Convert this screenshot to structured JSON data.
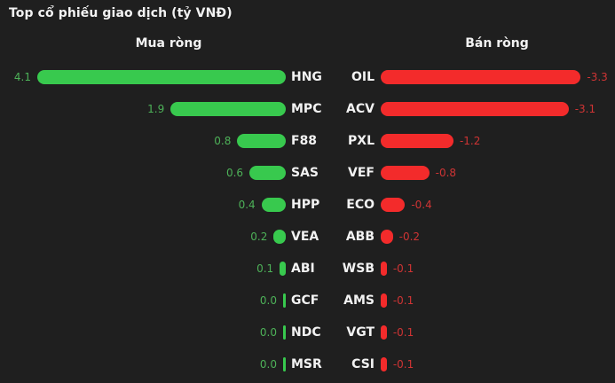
{
  "colors": {
    "background": "#1f1f1f",
    "text": "#f2f2f2",
    "buy_bar": "#38c94e",
    "buy_label": "#4db158",
    "sell_bar": "#f32b2b",
    "sell_label": "#cf3434"
  },
  "chart_data": {
    "type": "bar",
    "orientation": "horizontal",
    "title": "Top cổ phiếu giao dịch (tỷ VNĐ)",
    "unit": "tỷ VNĐ",
    "grid": false,
    "legend_position": "column-headers",
    "value_range": [
      -4.1,
      4.1
    ],
    "series": [
      {
        "name": "Mua ròng",
        "direction": "left",
        "categories": [
          "HNG",
          "MPC",
          "F88",
          "SAS",
          "HPP",
          "VEA",
          "ABI",
          "GCF",
          "NDC",
          "MSR"
        ],
        "values": [
          4.1,
          1.9,
          0.8,
          0.6,
          0.4,
          0.2,
          0.1,
          0.0,
          0.0,
          0.0
        ],
        "value_labels": [
          "4.1",
          "1.9",
          "0.8",
          "0.6",
          "0.4",
          "0.2",
          "0.1",
          "0.0",
          "0.0",
          "0.0"
        ]
      },
      {
        "name": "Bán ròng",
        "direction": "right",
        "categories": [
          "OIL",
          "ACV",
          "PXL",
          "VEF",
          "ECO",
          "ABB",
          "WSB",
          "AMS",
          "VGT",
          "CSI"
        ],
        "values": [
          -3.3,
          -3.1,
          -1.2,
          -0.8,
          -0.4,
          -0.2,
          -0.1,
          -0.1,
          -0.1,
          -0.1
        ],
        "value_labels": [
          "-3.3",
          "-3.1",
          "-1.2",
          "-0.8",
          "-0.4",
          "-0.2",
          "-0.1",
          "-0.1",
          "-0.1",
          "-0.1"
        ]
      }
    ]
  }
}
